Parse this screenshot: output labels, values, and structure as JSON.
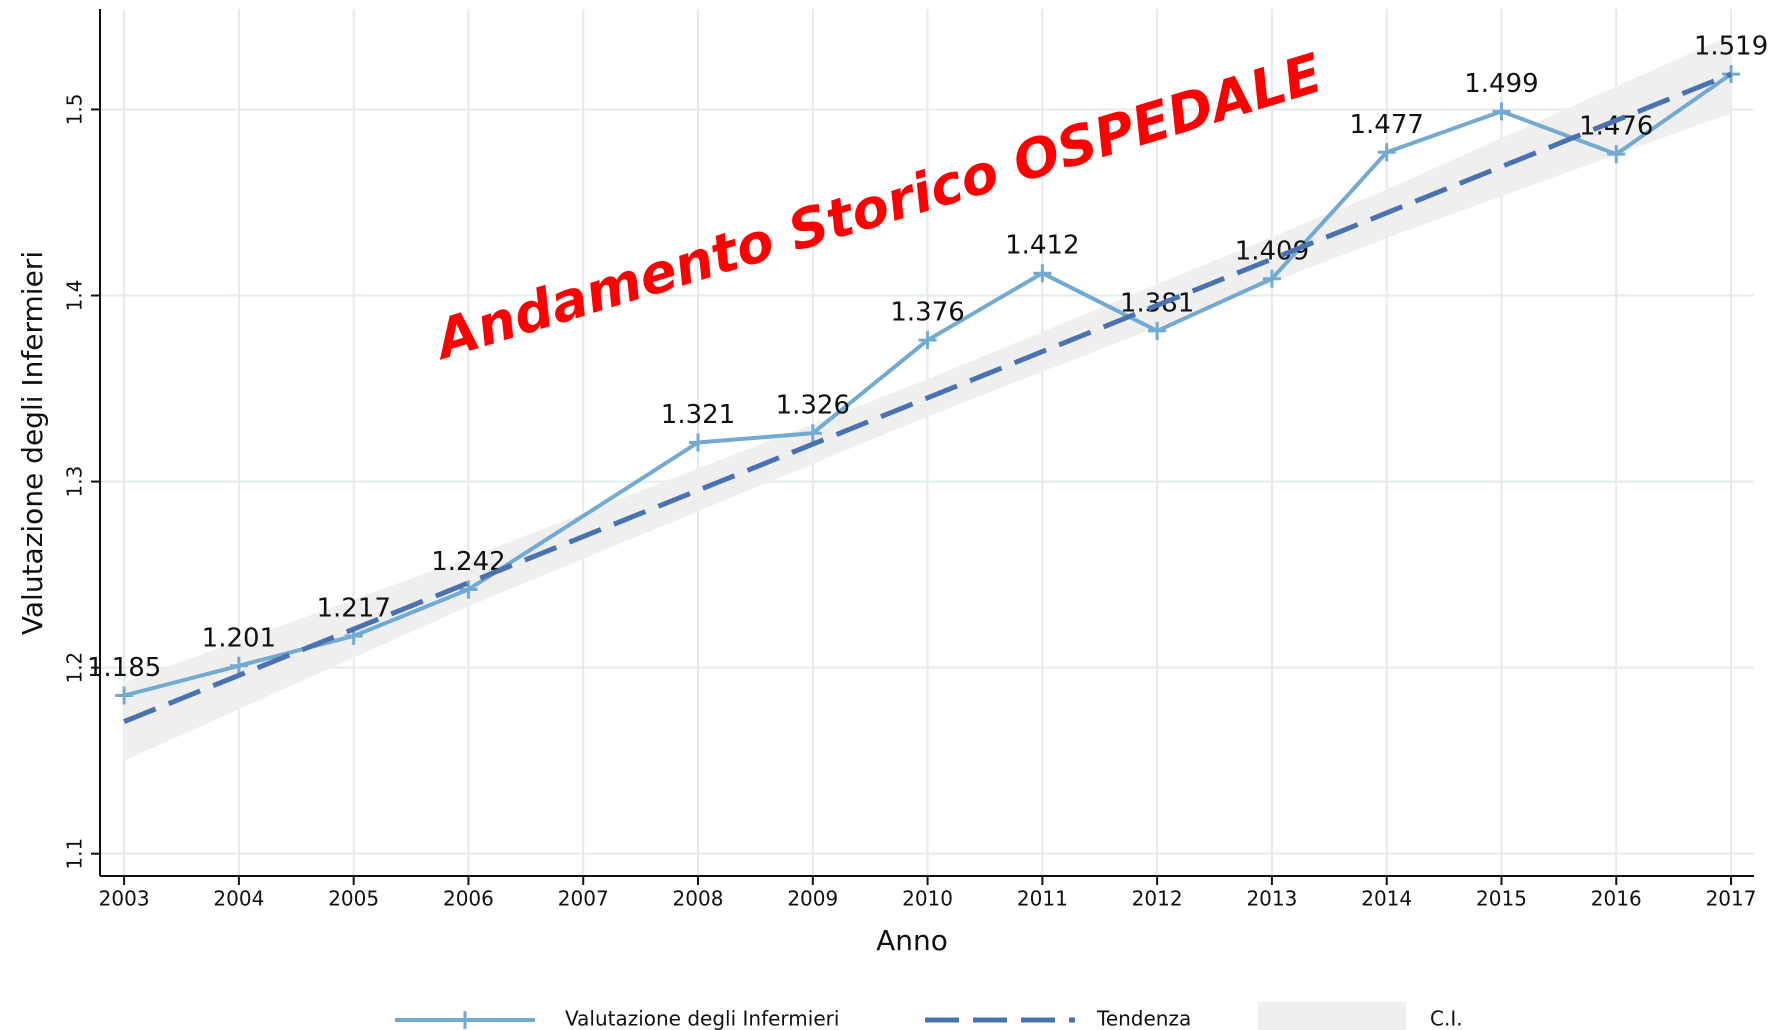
{
  "chart_data": {
    "type": "line",
    "annotation": "Andamento Storico OSPEDALE",
    "annotation_color": "#ff0000",
    "x_label": "Anno",
    "y_label": "Valutazione degli Infermieri",
    "xlim": [
      2002.79,
      2017.2
    ],
    "xticks": [
      2003,
      2004,
      2005,
      2006,
      2007,
      2008,
      2009,
      2010,
      2011,
      2012,
      2013,
      2014,
      2015,
      2016,
      2017
    ],
    "ylim": [
      1.088,
      1.554
    ],
    "yticks": [
      1.1,
      1.2,
      1.3,
      1.4,
      1.5
    ],
    "grid": true,
    "legend": "bottom",
    "series": [
      {
        "name": "Valutazione degli Infermieri",
        "color": "#72aad2",
        "x": [
          2003,
          2004,
          2005,
          2006,
          2008,
          2009,
          2010,
          2011,
          2012,
          2013,
          2014,
          2015,
          2016,
          2017
        ],
        "values": [
          1.185,
          1.201,
          1.217,
          1.242,
          1.321,
          1.326,
          1.376,
          1.412,
          1.381,
          1.409,
          1.477,
          1.499,
          1.476,
          1.519
        ]
      },
      {
        "name": "Tendenza",
        "color": "#4a72b0",
        "dashed": true,
        "x": [
          2003,
          2017
        ],
        "values": [
          1.171,
          1.519
        ]
      }
    ],
    "ci": {
      "name": "C.I.",
      "color": "#efefef",
      "x": [
        2003,
        2006,
        2010,
        2014,
        2017
      ],
      "lower": [
        1.15,
        1.233,
        1.335,
        1.431,
        1.498
      ],
      "upper": [
        1.192,
        1.259,
        1.355,
        1.457,
        1.54
      ]
    }
  }
}
